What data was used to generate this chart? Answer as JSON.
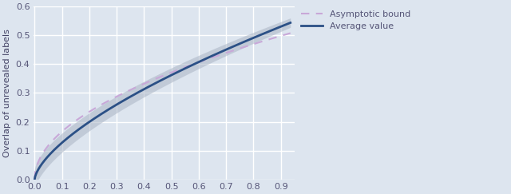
{
  "title": "",
  "xlabel": "",
  "ylabel": "Overlap of unrevealed labels",
  "xlim": [
    -0.005,
    0.95
  ],
  "ylim": [
    0,
    0.6
  ],
  "xticks": [
    0.0,
    0.1,
    0.2,
    0.3,
    0.4,
    0.5,
    0.6,
    0.7,
    0.8,
    0.9
  ],
  "yticks": [
    0.0,
    0.1,
    0.2,
    0.3,
    0.4,
    0.5,
    0.6
  ],
  "bg_color": "#dde5ef",
  "grid_color": "#ffffff",
  "asymptotic_color": "#c8a8d8",
  "average_color": "#2b5086",
  "shade_color": "#aab5c5",
  "legend_labels": [
    "Asymptotic bound",
    "Average value"
  ],
  "figsize": [
    6.4,
    2.43
  ],
  "dpi": 100,
  "avg_a": 0.62,
  "avg_b": 0.45,
  "asym_a": 0.53,
  "asym_b": 0.5
}
